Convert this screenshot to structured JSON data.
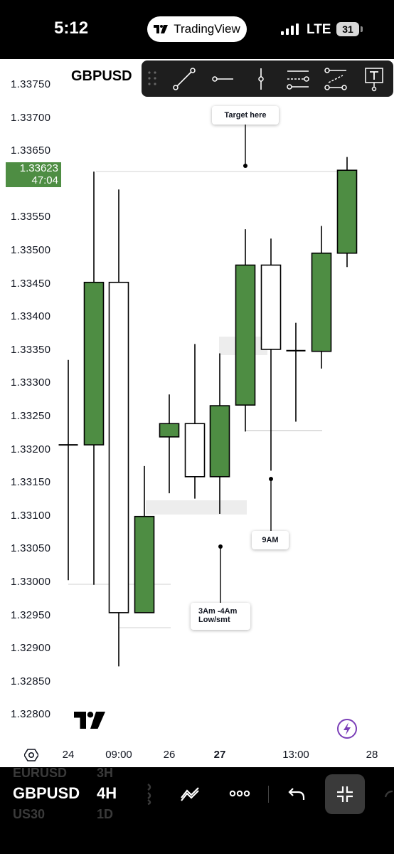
{
  "status_bar": {
    "time": "5:12",
    "app_pill": "TradingView",
    "network": "LTE",
    "battery": "31"
  },
  "header": {
    "symbol": "GBPUSD"
  },
  "toolbar": {
    "tools": [
      "trend-line-icon",
      "horizontal-ray-icon",
      "vertical-line-icon",
      "parallel-channel-icon",
      "regression-trend-icon",
      "text-tool-icon"
    ]
  },
  "price_axis": {
    "ticks": [
      "1.33750",
      "1.33700",
      "1.33650",
      "1.33600",
      "1.33550",
      "1.33500",
      "1.33450",
      "1.33400",
      "1.33350",
      "1.33300",
      "1.33250",
      "1.33200",
      "1.33150",
      "1.33100",
      "1.33050",
      "1.33000",
      "1.32950",
      "1.32900",
      "1.32850",
      "1.32800"
    ],
    "current_price": "1.33623",
    "countdown": "47:04"
  },
  "time_axis": {
    "labels": [
      "24",
      "09:00",
      "26",
      "27",
      "13:00",
      "28"
    ]
  },
  "annotations": {
    "target": "Target here",
    "nine_am": "9AM",
    "low_line1": "3Am -4Am",
    "low_line2": "Low/smt"
  },
  "colors": {
    "bull": "#4e8d43",
    "bear": "#ffffff",
    "wick": "#000000",
    "badge": "#4e8d43",
    "accent": "#7b3fb8"
  },
  "bottom_bar": {
    "symbol": "GBPUSD",
    "interval": "4H",
    "ghost_symbols": [
      "EURUSD",
      "US30"
    ],
    "ghost_intervals": [
      "3H",
      "1D"
    ]
  },
  "chart_data": {
    "type": "candlestick",
    "title": "GBPUSD",
    "ylim": [
      1.3278,
      1.3377
    ],
    "candles": [
      {
        "open": 1.33207,
        "high": 1.33335,
        "low": 1.33003,
        "close": 1.33207
      },
      {
        "open": 1.33207,
        "high": 1.33619,
        "low": 1.32996,
        "close": 1.33452
      },
      {
        "open": 1.33452,
        "high": 1.33592,
        "low": 1.32873,
        "close": 1.32954
      },
      {
        "open": 1.32954,
        "high": 1.33175,
        "low": 1.32954,
        "close": 1.33099
      },
      {
        "open": 1.33219,
        "high": 1.33283,
        "low": 1.33134,
        "close": 1.33239
      },
      {
        "open": 1.33239,
        "high": 1.33359,
        "low": 1.33126,
        "close": 1.33159
      },
      {
        "open": 1.33159,
        "high": 1.33345,
        "low": 1.33103,
        "close": 1.33266
      },
      {
        "open": 1.33267,
        "high": 1.33532,
        "low": 1.33227,
        "close": 1.33478
      },
      {
        "open": 1.33478,
        "high": 1.33518,
        "low": 1.33168,
        "close": 1.33351
      },
      {
        "open": 1.33349,
        "high": 1.33391,
        "low": 1.33242,
        "close": 1.33349
      },
      {
        "open": 1.33348,
        "high": 1.33537,
        "low": 1.33322,
        "close": 1.33496
      },
      {
        "open": 1.33496,
        "high": 1.33641,
        "low": 1.33475,
        "close": 1.33621
      }
    ]
  }
}
